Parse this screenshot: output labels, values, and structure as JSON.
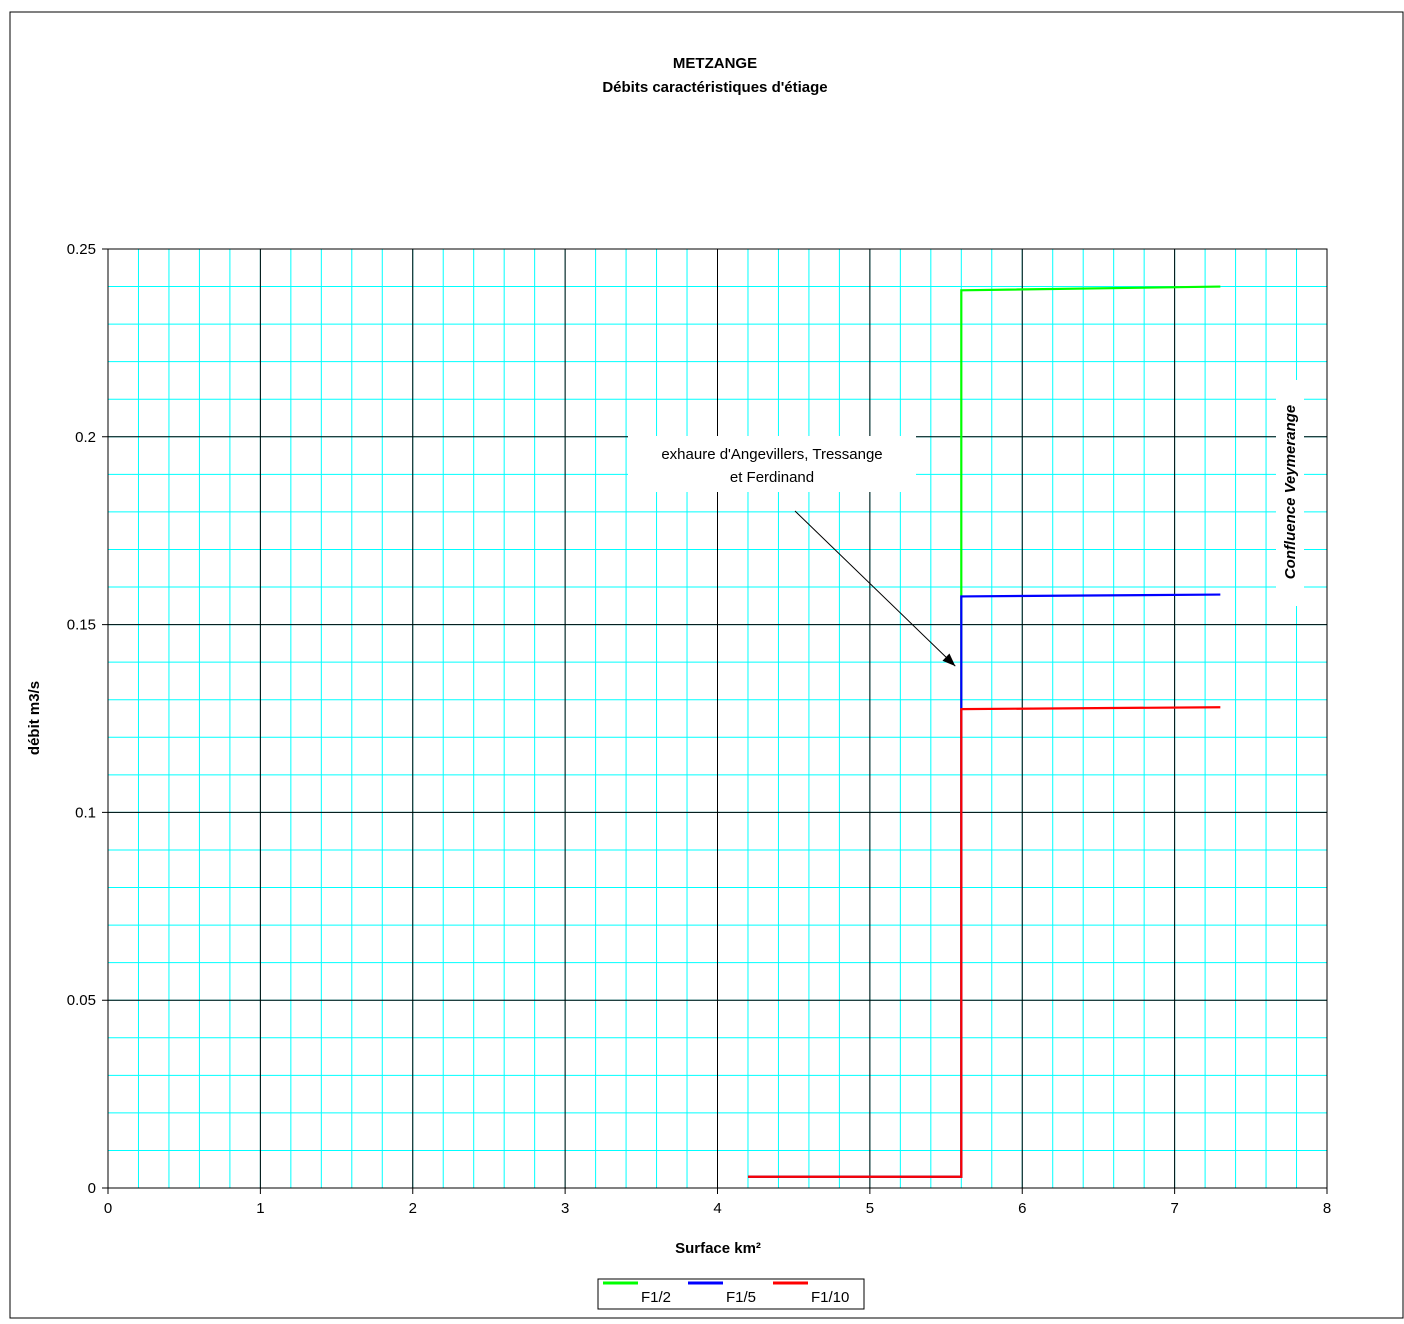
{
  "chart_data": {
    "type": "line",
    "title": "METZANGE",
    "subtitle": "Débits caractéristiques d'étiage",
    "xlabel": "Surface km²",
    "ylabel": "débit m3/s",
    "xlim": [
      0,
      8
    ],
    "ylim": [
      0,
      0.25
    ],
    "x_ticks": [
      "0",
      "1",
      "2",
      "3",
      "4",
      "5",
      "6",
      "7",
      "8"
    ],
    "y_ticks": [
      "0",
      "0.05",
      "0.1",
      "0.15",
      "0.2",
      "0.25"
    ],
    "x_tick_values": [
      0,
      1,
      2,
      3,
      4,
      5,
      6,
      7,
      8
    ],
    "y_tick_values": [
      0,
      0.05,
      0.1,
      0.15,
      0.2,
      0.25
    ],
    "x_minor_step": 0.2,
    "y_minor_step": 0.01,
    "grid": true,
    "legend_position": "bottom-center",
    "series": [
      {
        "name": "F1/2",
        "color": "#00ff00",
        "x": [
          4.2,
          5.6,
          5.6,
          7.3
        ],
        "y": [
          0.003,
          0.003,
          0.239,
          0.24
        ]
      },
      {
        "name": "F1/5",
        "color": "#0000ff",
        "x": [
          4.2,
          5.6,
          5.6,
          7.3
        ],
        "y": [
          0.003,
          0.003,
          0.1575,
          0.158
        ]
      },
      {
        "name": "F1/10",
        "color": "#ff0000",
        "x": [
          4.2,
          5.6,
          5.6,
          7.3
        ],
        "y": [
          0.003,
          0.003,
          0.1275,
          0.128
        ]
      }
    ],
    "annotations": [
      {
        "name": "exhaure",
        "lines": [
          "exhaure d'Angevillers, Tressange",
          "et Ferdinand"
        ],
        "arrow_to": [
          5.6,
          0.14
        ]
      },
      {
        "name": "confluence",
        "text": "Confluence Veymerange",
        "x": 7.8,
        "y": 0.185
      }
    ],
    "colors": {
      "major_grid": "#000000",
      "minor_grid": "#00ffff",
      "plot_border": "#000000"
    }
  }
}
